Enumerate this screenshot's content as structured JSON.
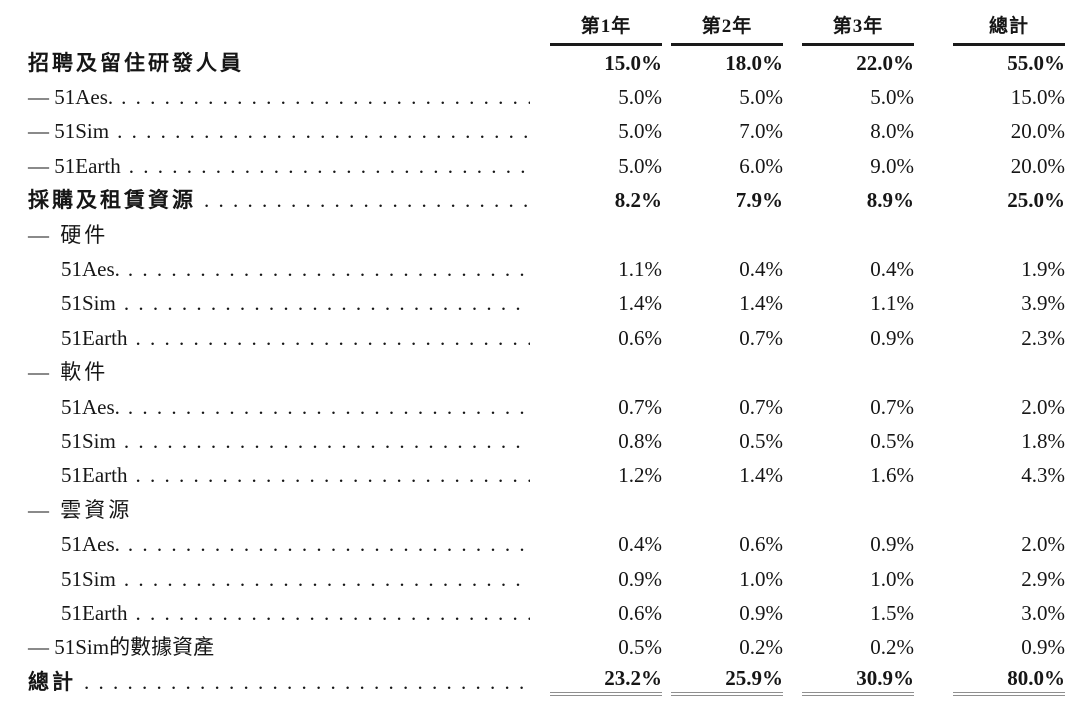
{
  "table": {
    "columns": [
      "第1年",
      "第2年",
      "第3年",
      "總計"
    ],
    "rows": [
      {
        "label": "招聘及留住研發人員",
        "bold": true,
        "indent": 0,
        "leaders": false,
        "values": [
          "15.0%",
          "18.0%",
          "22.0%",
          "55.0%"
        ]
      },
      {
        "label": "— 51Aes.",
        "bold": false,
        "indent": 0,
        "leaders": true,
        "values": [
          "5.0%",
          "5.0%",
          "5.0%",
          "15.0%"
        ]
      },
      {
        "label": "— 51Sim",
        "bold": false,
        "indent": 0,
        "leaders": true,
        "values": [
          "5.0%",
          "7.0%",
          "8.0%",
          "20.0%"
        ]
      },
      {
        "label": "— 51Earth",
        "bold": false,
        "indent": 0,
        "leaders": true,
        "values": [
          "5.0%",
          "6.0%",
          "9.0%",
          "20.0%"
        ]
      },
      {
        "label": "採購及租賃資源",
        "bold": true,
        "indent": 0,
        "leaders": true,
        "values": [
          "8.2%",
          "7.9%",
          "8.9%",
          "25.0%"
        ]
      },
      {
        "label": "— 硬件",
        "bold": false,
        "indent": 0,
        "leaders": false,
        "values": null
      },
      {
        "label": "51Aes.",
        "bold": false,
        "indent": 1,
        "leaders": true,
        "values": [
          "1.1%",
          "0.4%",
          "0.4%",
          "1.9%"
        ]
      },
      {
        "label": "51Sim",
        "bold": false,
        "indent": 1,
        "leaders": true,
        "values": [
          "1.4%",
          "1.4%",
          "1.1%",
          "3.9%"
        ]
      },
      {
        "label": "51Earth",
        "bold": false,
        "indent": 1,
        "leaders": true,
        "values": [
          "0.6%",
          "0.7%",
          "0.9%",
          "2.3%"
        ]
      },
      {
        "label": "— 軟件",
        "bold": false,
        "indent": 0,
        "leaders": false,
        "values": null
      },
      {
        "label": "51Aes.",
        "bold": false,
        "indent": 1,
        "leaders": true,
        "values": [
          "0.7%",
          "0.7%",
          "0.7%",
          "2.0%"
        ]
      },
      {
        "label": "51Sim",
        "bold": false,
        "indent": 1,
        "leaders": true,
        "values": [
          "0.8%",
          "0.5%",
          "0.5%",
          "1.8%"
        ]
      },
      {
        "label": "51Earth",
        "bold": false,
        "indent": 1,
        "leaders": true,
        "values": [
          "1.2%",
          "1.4%",
          "1.6%",
          "4.3%"
        ]
      },
      {
        "label": "— 雲資源",
        "bold": false,
        "indent": 0,
        "leaders": false,
        "values": null
      },
      {
        "label": "51Aes.",
        "bold": false,
        "indent": 1,
        "leaders": true,
        "values": [
          "0.4%",
          "0.6%",
          "0.9%",
          "2.0%"
        ]
      },
      {
        "label": "51Sim",
        "bold": false,
        "indent": 1,
        "leaders": true,
        "values": [
          "0.9%",
          "1.0%",
          "1.0%",
          "2.9%"
        ]
      },
      {
        "label": "51Earth",
        "bold": false,
        "indent": 1,
        "leaders": true,
        "values": [
          "0.6%",
          "0.9%",
          "1.5%",
          "3.0%"
        ]
      },
      {
        "label": "— 51Sim的數據資產",
        "bold": false,
        "indent": 0,
        "leaders": false,
        "values": [
          "0.5%",
          "0.2%",
          "0.2%",
          "0.9%"
        ]
      },
      {
        "label": "總計",
        "bold": true,
        "indent": 0,
        "leaders": true,
        "values": [
          "23.2%",
          "25.9%",
          "30.9%",
          "80.0%"
        ],
        "double_rule_below": true
      }
    ]
  },
  "colors": {
    "text": "#161616",
    "header_rule": "#1a1a1a",
    "total_rule": "#8f8f8f",
    "background": "#ffffff"
  }
}
